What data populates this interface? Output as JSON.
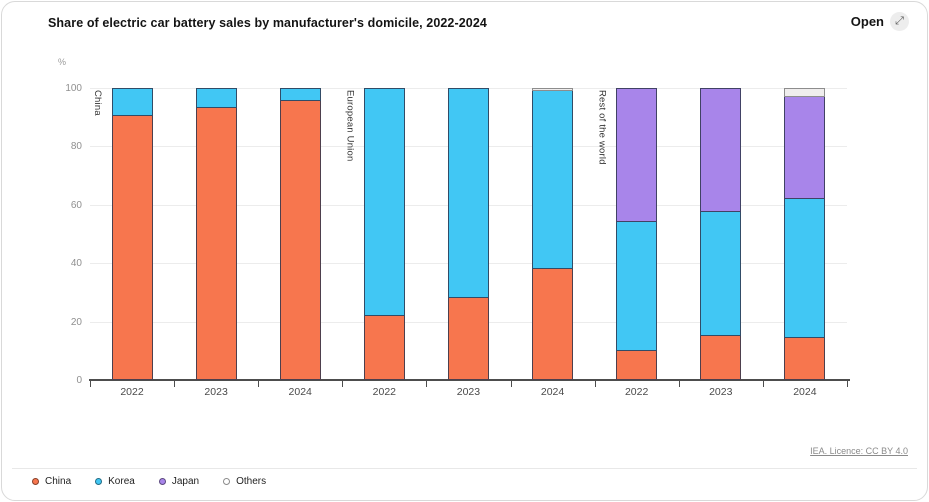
{
  "card": {
    "title": "Share of electric car battery sales by manufacturer's domicile, 2022-2024",
    "open_label": "Open",
    "open_icon": "expand-diagonal",
    "attribution": "IEA. Licence: CC BY 4.0"
  },
  "colors": {
    "china": "#F7764E",
    "korea": "#41C7F4",
    "japan": "#A885EA",
    "others": "#EFEDED",
    "bar_stroke": "#2F364D",
    "grid": "#ECECEC",
    "axis": "#4D4D4D"
  },
  "chart_data": {
    "type": "bar",
    "stacked": true,
    "title": "Share of electric car battery sales by manufacturer's domicile, 2022-2024",
    "ylabel": "%",
    "ylim": [
      0,
      100
    ],
    "yticks": [
      0,
      20,
      40,
      60,
      80,
      100
    ],
    "grid": "horizontal",
    "legend_position": "bottom-left",
    "groups": [
      "China",
      "European Union",
      "Rest of the world"
    ],
    "categories": [
      "2022",
      "2023",
      "2024",
      "2022",
      "2023",
      "2024",
      "2022",
      "2023",
      "2024"
    ],
    "series": [
      {
        "name": "China",
        "color": "#F7764E",
        "values": [
          90.5,
          93,
          95.5,
          22,
          28,
          38,
          10,
          15,
          14.5
        ]
      },
      {
        "name": "Korea",
        "color": "#41C7F4",
        "values": [
          9.5,
          7,
          4.5,
          78,
          72,
          61,
          44,
          42.5,
          47.5
        ]
      },
      {
        "name": "Japan",
        "color": "#A885EA",
        "values": [
          0,
          0,
          0,
          0,
          0,
          0,
          46,
          42.5,
          35
        ]
      },
      {
        "name": "Others",
        "color": "#EFEDED",
        "values": [
          0,
          0,
          0,
          0,
          0,
          1,
          0,
          0,
          3
        ]
      }
    ]
  },
  "legend": [
    {
      "label": "China",
      "color": "#F7764E"
    },
    {
      "label": "Korea",
      "color": "#41C7F4"
    },
    {
      "label": "Japan",
      "color": "#A885EA"
    },
    {
      "label": "Others",
      "color": "#FFFFFF"
    }
  ]
}
